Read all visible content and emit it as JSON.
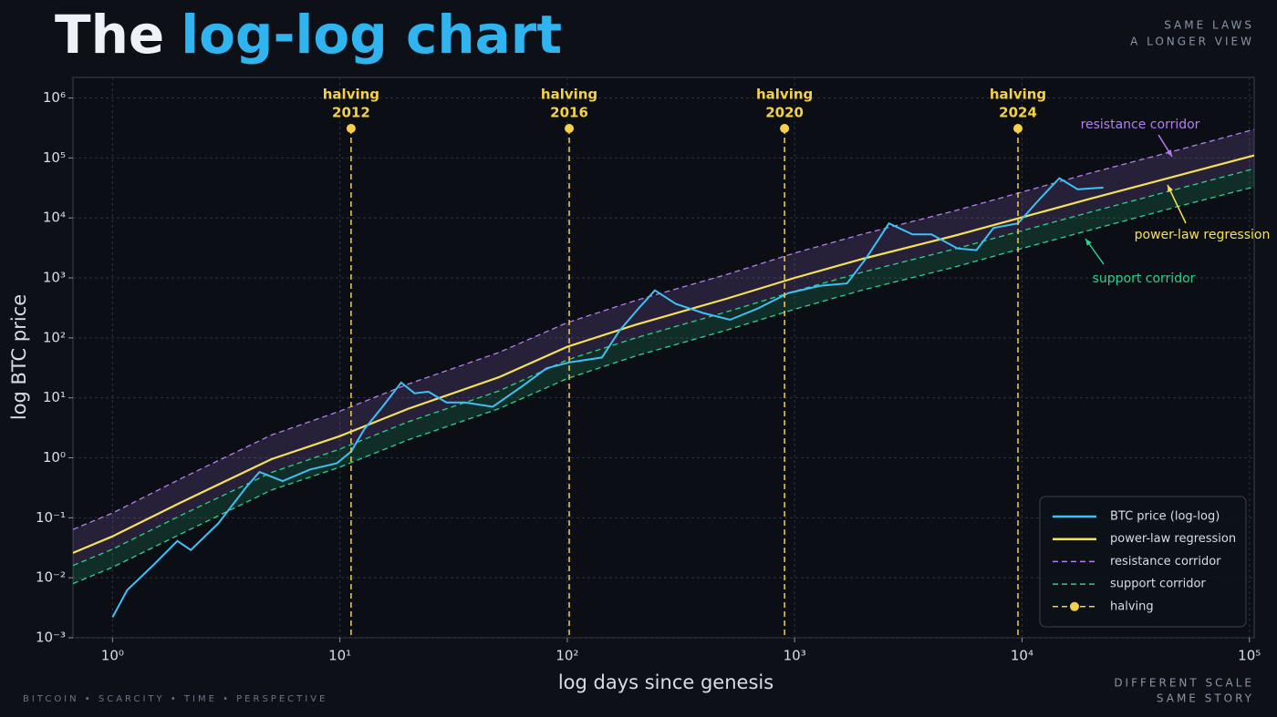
{
  "header": {
    "title": "The",
    "title_highlight": "log-log chart",
    "tagline": [
      "SAME  LAWS",
      "A LONGER VIEW"
    ],
    "footer_left": "BITCOIN  •  SCARCITY  •  TIME  •  PERSPECTIVE",
    "footer_right": [
      "DIFFERENT SCALE",
      "SAME STORY"
    ]
  },
  "chart_data": {
    "type": "line",
    "x_label": "log days since genesis",
    "y_label": "log BTC price",
    "log_x": true,
    "log_y": true,
    "grid": true,
    "legend": "lower right",
    "xlim": [
      0.67,
      105000
    ],
    "ylim": [
      0.001,
      2200000
    ],
    "xticks": [
      {
        "value": 1,
        "label": "10⁰"
      },
      {
        "value": 10,
        "label": "10¹"
      },
      {
        "value": 100,
        "label": "10²"
      },
      {
        "value": 1000,
        "label": "10³"
      },
      {
        "value": 10000,
        "label": "10⁴"
      },
      {
        "value": 100000,
        "label": "10⁵"
      }
    ],
    "yticks": [
      {
        "value": 0.001,
        "label": "10⁻³"
      },
      {
        "value": 0.01,
        "label": "10⁻²"
      },
      {
        "value": 0.1,
        "label": "10⁻¹"
      },
      {
        "value": 1,
        "label": "10⁰"
      },
      {
        "value": 10,
        "label": "10¹"
      },
      {
        "value": 100,
        "label": "10²"
      },
      {
        "value": 1000,
        "label": "10³"
      },
      {
        "value": 10000,
        "label": "10⁴"
      },
      {
        "value": 100000,
        "label": "10⁵"
      },
      {
        "value": 1000000,
        "label": "10⁶"
      }
    ],
    "x": [
      0.67,
      1,
      2,
      5,
      10,
      20,
      50,
      100,
      200,
      500,
      1000,
      2000,
      5000,
      10000,
      20000,
      50000,
      105000
    ],
    "series": [
      {
        "name": "BTC price (log-log)",
        "color": "#3ec1f5",
        "x": [
          1,
          1.16,
          1.53,
          1.93,
          2.21,
          2.92,
          3.86,
          4.43,
          5.6,
          7.4,
          9.7,
          11.2,
          12.8,
          15.4,
          18.6,
          21.3,
          24.5,
          29.4,
          35.5,
          47,
          64,
          81,
          102,
          142,
          170,
          206,
          243,
          300,
          395,
          520,
          690,
          940,
          1300,
          1700,
          2050,
          2600,
          3300,
          4000,
          5200,
          6300,
          7500,
          9600,
          12000,
          14600,
          17600,
          22800
        ],
        "values": [
          0.0022,
          0.0062,
          0.017,
          0.041,
          0.029,
          0.081,
          0.32,
          0.58,
          0.41,
          0.64,
          0.81,
          1.27,
          3.0,
          7.1,
          18,
          11.9,
          12.7,
          8.4,
          8.4,
          7.1,
          16,
          31,
          39,
          47,
          133,
          310,
          620,
          370,
          260,
          200,
          310,
          560,
          740,
          810,
          2060,
          8100,
          5300,
          5300,
          3100,
          2900,
          6800,
          8100,
          21000,
          46000,
          30000,
          32000
        ]
      },
      {
        "name": "power-law regression",
        "color": "#f5e05a",
        "values": [
          0.026,
          0.049,
          0.18,
          0.95,
          2.3,
          6.6,
          22,
          71,
          166,
          447,
          1000,
          2090,
          5000,
          10200,
          20900,
          52500,
          110000
        ]
      },
      {
        "name": "resistance corridor",
        "color": "#b57cf0",
        "dashed": true,
        "values": [
          0.064,
          0.12,
          0.45,
          2.4,
          6,
          17,
          57,
          180,
          420,
          1130,
          2600,
          5400,
          13000,
          27000,
          56000,
          140000,
          300000
        ]
      },
      {
        "name": "support corridor",
        "color": "#2fd08a",
        "dashed": true,
        "values": [
          0.016,
          0.03,
          0.11,
          0.57,
          1.4,
          4,
          13,
          43,
          100,
          270,
          600,
          1250,
          3000,
          6100,
          12500,
          31500,
          66000
        ],
        "lower": [
          0.008,
          0.015,
          0.054,
          0.29,
          0.7,
          2,
          6.6,
          21,
          50,
          134,
          300,
          630,
          1500,
          3100,
          6300,
          16000,
          33000
        ]
      }
    ],
    "halving": {
      "name": "halving",
      "color": "#f5d04a",
      "x": [
        11.2,
        102,
        903,
        9600
      ],
      "years": [
        "2012",
        "2016",
        "2020",
        "2024"
      ]
    },
    "annotations": [
      {
        "text": "resistance corridor",
        "color": "#b57cf0"
      },
      {
        "text": "power-law regression",
        "color": "#f5e05a"
      },
      {
        "text": "support corridor",
        "color": "#2fd08a"
      }
    ]
  }
}
